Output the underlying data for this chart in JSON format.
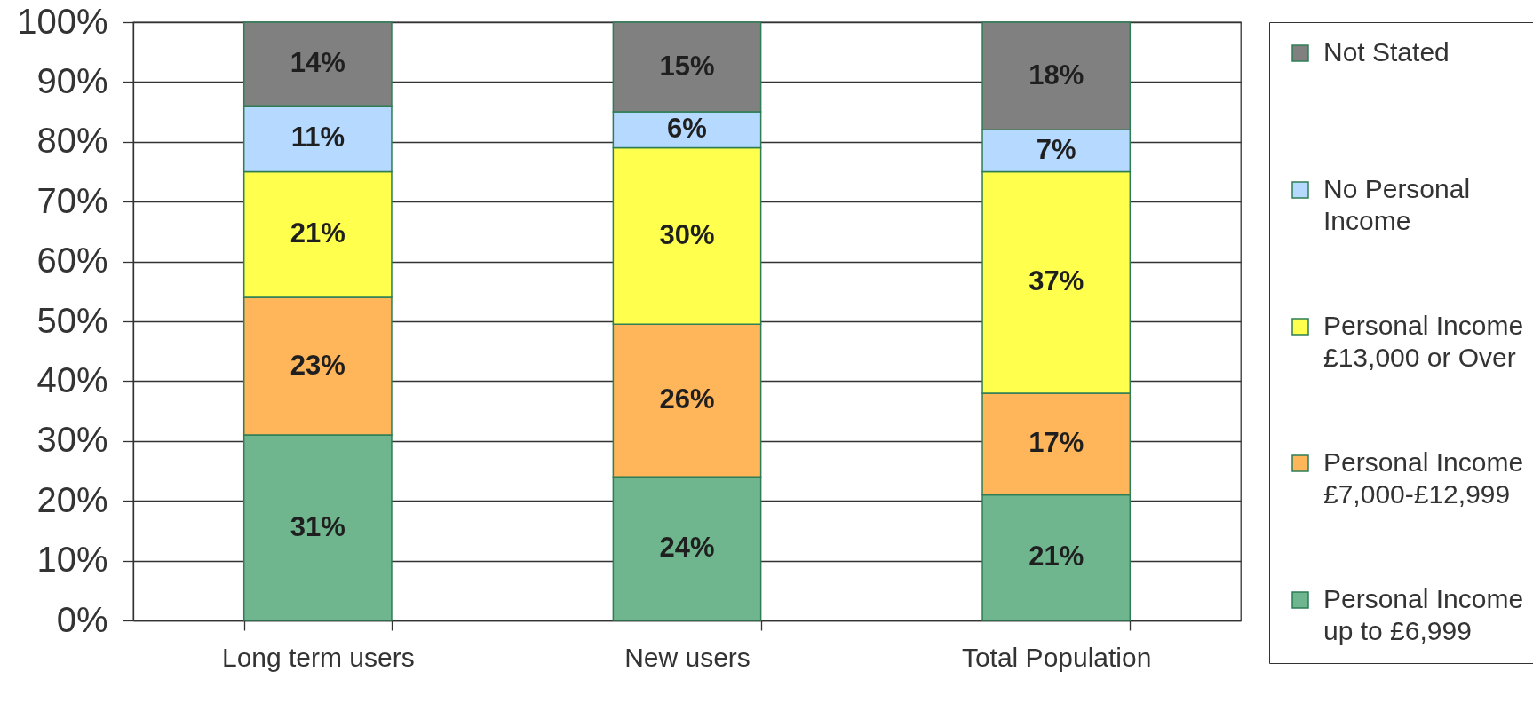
{
  "chart_data": {
    "type": "bar",
    "categories": [
      "Long term users",
      "New users",
      "Total Population"
    ],
    "stacked": true,
    "series": [
      {
        "name": "Personal Income up to £6,999",
        "color": "#6fb68f",
        "values": [
          31,
          24,
          21
        ],
        "value_labels": [
          "31%",
          "24%",
          "21%"
        ]
      },
      {
        "name": "Personal Income £7,000-£12,999",
        "color": "#ffb55a",
        "values": [
          23,
          25.5,
          17
        ],
        "value_labels": [
          "23%",
          "26%",
          "17%"
        ]
      },
      {
        "name": "Personal Income £13,000 or Over",
        "color": "#ffff4d",
        "values": [
          21,
          29.5,
          37
        ],
        "value_labels": [
          "21%",
          "30%",
          "37%"
        ]
      },
      {
        "name": "No Personal Income",
        "color": "#b5d9ff",
        "values": [
          11,
          6,
          7
        ],
        "value_labels": [
          "11%",
          "6%",
          "7%"
        ]
      },
      {
        "name": "Not Stated",
        "color": "#808080",
        "values": [
          14,
          15,
          18
        ],
        "value_labels": [
          "14%",
          "15%",
          "18%"
        ]
      }
    ],
    "ylim": [
      0,
      100
    ],
    "yticks": [
      {
        "value": 0,
        "label": "0%"
      },
      {
        "value": 10,
        "label": "10%"
      },
      {
        "value": 20,
        "label": "20%"
      },
      {
        "value": 30,
        "label": "30%"
      },
      {
        "value": 40,
        "label": "40%"
      },
      {
        "value": 50,
        "label": "50%"
      },
      {
        "value": 60,
        "label": "60%"
      },
      {
        "value": 70,
        "label": "70%"
      },
      {
        "value": 80,
        "label": "80%"
      },
      {
        "value": 90,
        "label": "90%"
      },
      {
        "value": 100,
        "label": "100%"
      }
    ],
    "grid": "y",
    "legend": "right"
  }
}
